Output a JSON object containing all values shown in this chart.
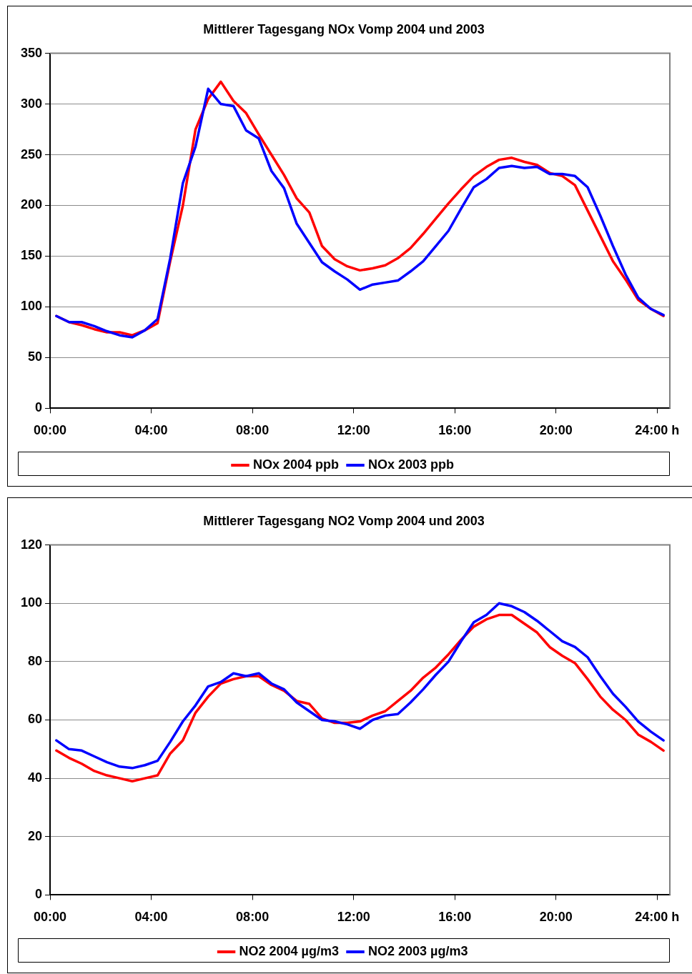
{
  "chart_data": [
    {
      "type": "line",
      "title": "Mittlerer Tagesgang NOx Vomp 2004 und 2003",
      "x": [
        0.25,
        0.75,
        1.25,
        1.75,
        2.25,
        2.75,
        3.25,
        3.75,
        4.25,
        4.75,
        5.25,
        5.75,
        6.25,
        6.75,
        7.25,
        7.75,
        8.25,
        8.75,
        9.25,
        9.75,
        10.25,
        10.75,
        11.25,
        11.75,
        12.25,
        12.75,
        13.25,
        13.75,
        14.25,
        14.75,
        15.25,
        15.75,
        16.25,
        16.75,
        17.25,
        17.75,
        18.25,
        18.75,
        19.25,
        19.75,
        20.25,
        20.75,
        21.25,
        21.75,
        22.25,
        22.75,
        23.25,
        23.75,
        24.25
      ],
      "xlim": [
        0,
        24.5
      ],
      "xticks": [
        {
          "value": 0,
          "label": "00:00"
        },
        {
          "value": 4,
          "label": "04:00"
        },
        {
          "value": 8,
          "label": "08:00"
        },
        {
          "value": 12,
          "label": "12:00"
        },
        {
          "value": 16,
          "label": "16:00"
        },
        {
          "value": 20,
          "label": "20:00"
        },
        {
          "value": 24,
          "label": "24:00 h"
        }
      ],
      "ylim": [
        0,
        350
      ],
      "yticks": [
        0,
        50,
        100,
        150,
        200,
        250,
        300,
        350
      ],
      "grid": "y",
      "legend": "bottom",
      "marker": "none",
      "line_style": "solid",
      "series": [
        {
          "name": "NOx 2004 ppb",
          "color": "#ff0000",
          "values": [
            91,
            85,
            82,
            78,
            75,
            75,
            72,
            77,
            84,
            145,
            200,
            275,
            305,
            322,
            303,
            291,
            270,
            250,
            230,
            207,
            193,
            160,
            147,
            140,
            136,
            138,
            141,
            148,
            158,
            172,
            187,
            202,
            216,
            229,
            238,
            245,
            247,
            243,
            240,
            232,
            229,
            220,
            195,
            170,
            145,
            127,
            107,
            98,
            91
          ]
        },
        {
          "name": "NOx 2003 ppb",
          "color": "#0000ff",
          "values": [
            91,
            85,
            85,
            81,
            76,
            72,
            70,
            77,
            88,
            148,
            222,
            258,
            315,
            300,
            298,
            274,
            266,
            234,
            217,
            182,
            163,
            144,
            135,
            127,
            117,
            122,
            124,
            126,
            135,
            145,
            160,
            175,
            197,
            218,
            226,
            237,
            239,
            237,
            238,
            231,
            231,
            229,
            218,
            190,
            160,
            132,
            109,
            98,
            92
          ]
        }
      ]
    },
    {
      "type": "line",
      "title": "Mittlerer Tagesgang NO2 Vomp 2004 und 2003",
      "x": [
        0.25,
        0.75,
        1.25,
        1.75,
        2.25,
        2.75,
        3.25,
        3.75,
        4.25,
        4.75,
        5.25,
        5.75,
        6.25,
        6.75,
        7.25,
        7.75,
        8.25,
        8.75,
        9.25,
        9.75,
        10.25,
        10.75,
        11.25,
        11.75,
        12.25,
        12.75,
        13.25,
        13.75,
        14.25,
        14.75,
        15.25,
        15.75,
        16.25,
        16.75,
        17.25,
        17.75,
        18.25,
        18.75,
        19.25,
        19.75,
        20.25,
        20.75,
        21.25,
        21.75,
        22.25,
        22.75,
        23.25,
        23.75,
        24.25
      ],
      "xlim": [
        0,
        24.5
      ],
      "xticks": [
        {
          "value": 0,
          "label": "00:00"
        },
        {
          "value": 4,
          "label": "04:00"
        },
        {
          "value": 8,
          "label": "08:00"
        },
        {
          "value": 12,
          "label": "12:00"
        },
        {
          "value": 16,
          "label": "16:00"
        },
        {
          "value": 20,
          "label": "20:00"
        },
        {
          "value": 24,
          "label": "24:00 h"
        }
      ],
      "ylim": [
        0,
        120
      ],
      "yticks": [
        0,
        20,
        40,
        60,
        80,
        100,
        120
      ],
      "grid": "y",
      "legend": "bottom",
      "marker": "none",
      "line_style": "solid",
      "series": [
        {
          "name": "NO2 2004 µg/m3",
          "color": "#ff0000",
          "values": [
            49.5,
            47,
            45,
            42.5,
            41,
            40,
            39,
            40,
            41,
            48.5,
            53,
            62.5,
            68,
            72.5,
            74,
            75,
            75,
            72,
            70,
            66.5,
            65.5,
            60.5,
            59,
            59,
            59.5,
            61.5,
            63,
            66.5,
            70,
            74.5,
            78,
            82.5,
            87.5,
            92,
            94.5,
            96,
            96,
            93,
            90,
            85,
            82,
            79.5,
            74,
            68,
            63.5,
            60,
            55,
            52.5,
            49.5
          ]
        },
        {
          "name": "NO2 2003 µg/m3",
          "color": "#0000ff",
          "values": [
            53,
            50,
            49.5,
            47.5,
            45.5,
            44,
            43.5,
            44.5,
            46,
            52.5,
            59.5,
            65,
            71.5,
            73,
            76,
            75,
            76,
            72.5,
            70.5,
            66,
            63,
            60,
            59.5,
            58.5,
            57,
            60,
            61.5,
            62,
            66,
            70.5,
            75.5,
            80,
            87,
            93.5,
            96,
            100,
            99,
            97,
            94,
            90.5,
            87,
            85,
            81.5,
            75,
            69,
            64.5,
            59.5,
            56,
            53
          ]
        }
      ]
    }
  ]
}
